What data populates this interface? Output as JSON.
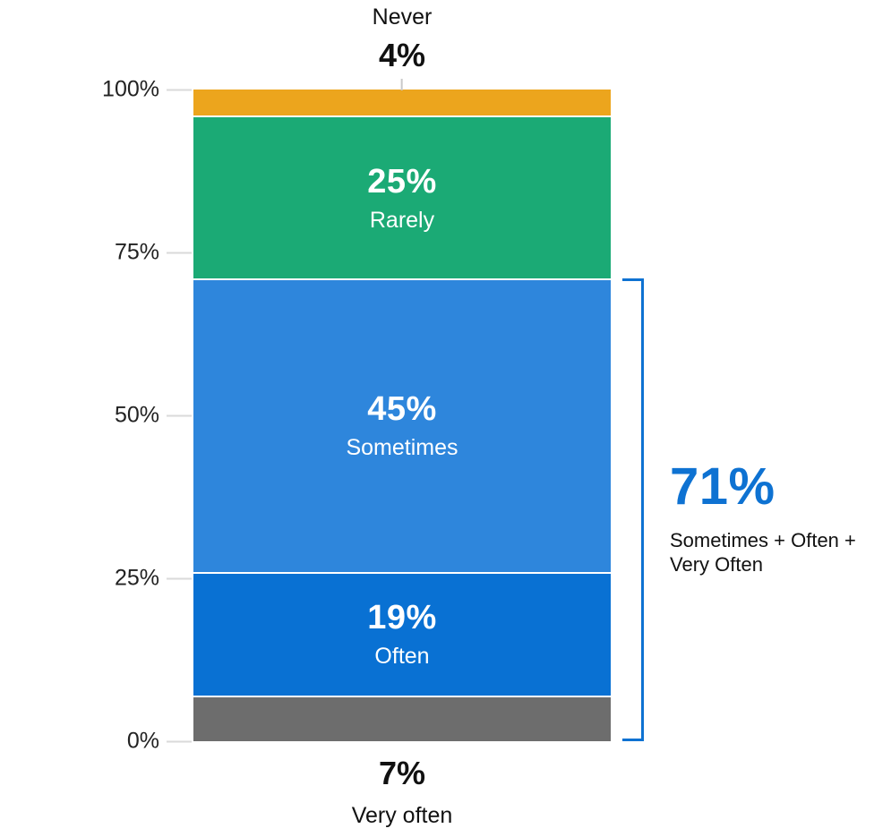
{
  "chart_data": {
    "type": "bar",
    "subtype": "100-percent-stacked-vertical",
    "title": "",
    "xlabel": "",
    "ylabel": "",
    "unit": "%",
    "categories": [
      "Never",
      "Rarely",
      "Sometimes",
      "Often",
      "Very often"
    ],
    "values": [
      4,
      25,
      45,
      19,
      7
    ],
    "segments_top_to_bottom": [
      {
        "name": "Never",
        "value": 4,
        "display": "4%",
        "color": "#ECA51D",
        "label_placement": "above"
      },
      {
        "name": "Rarely",
        "value": 25,
        "display": "25%",
        "color": "#1BAA75",
        "label_placement": "inside"
      },
      {
        "name": "Sometimes",
        "value": 45,
        "display": "45%",
        "color": "#2E86DC",
        "label_placement": "inside"
      },
      {
        "name": "Often",
        "value": 19,
        "display": "19%",
        "color": "#0971D3",
        "label_placement": "inside"
      },
      {
        "name": "Very often",
        "value": 7,
        "display": "7%",
        "color": "#6D6D6D",
        "label_placement": "below"
      }
    ],
    "y_axis": {
      "min": 0,
      "max": 100,
      "ticks": [
        {
          "value": 100,
          "label": "100%"
        },
        {
          "value": 75,
          "label": "75%"
        },
        {
          "value": 50,
          "label": "50%"
        },
        {
          "value": 25,
          "label": "25%"
        },
        {
          "value": 0,
          "label": "0%"
        }
      ]
    },
    "callout_top": {
      "category": "Never",
      "value_display": "4%"
    },
    "callout_bottom": {
      "category": "Very often",
      "value_display": "7%"
    },
    "annotation_bracket": {
      "total_display": "71%",
      "description_line1": "Sometimes + Often +",
      "description_line2": "Very Often",
      "from_value": 0,
      "to_value": 71,
      "color": "#0E72D2"
    },
    "legend": "none",
    "grid": "tick-marks-only",
    "background": "#ffffff"
  },
  "colors": {
    "axis_text": "#222222",
    "callout_text": "#111111",
    "tick_line": "#dadada",
    "connector_line": "#c9c9c9",
    "segment_gap": "#ffffff",
    "annotation_blue": "#0E72D2"
  }
}
